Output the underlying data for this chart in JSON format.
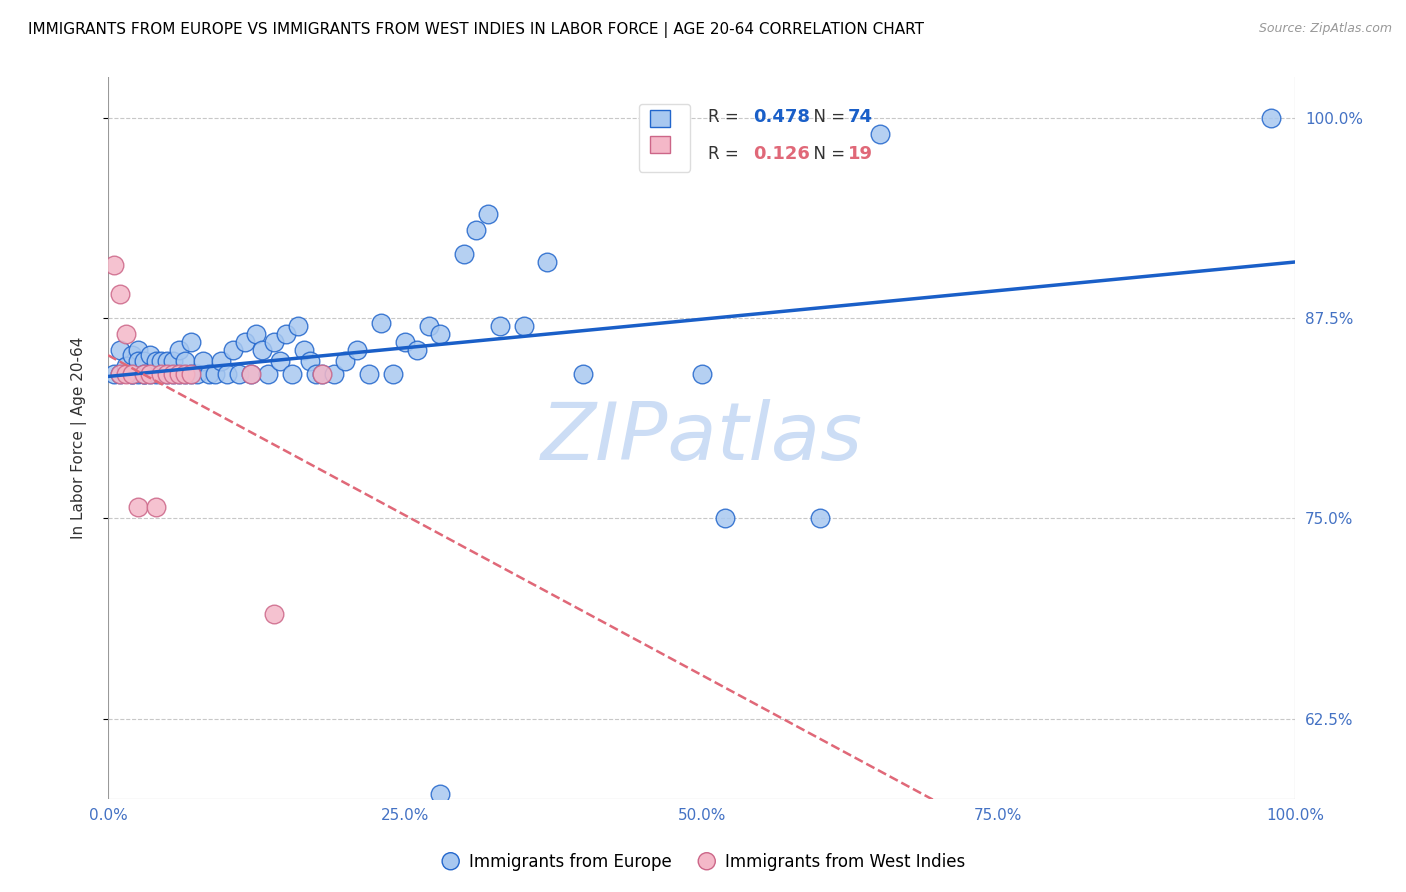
{
  "title": "IMMIGRANTS FROM EUROPE VS IMMIGRANTS FROM WEST INDIES IN LABOR FORCE | AGE 20-64 CORRELATION CHART",
  "source": "Source: ZipAtlas.com",
  "ylabel": "In Labor Force | Age 20-64",
  "ytick_values": [
    0.625,
    0.75,
    0.875,
    1.0
  ],
  "ytick_labels": [
    "62.5%",
    "75.0%",
    "87.5%",
    "100.0%"
  ],
  "xtick_values": [
    0.0,
    0.25,
    0.5,
    0.75,
    1.0
  ],
  "xtick_labels": [
    "0.0%",
    "25.0%",
    "50.0%",
    "75.0%",
    "100.0%"
  ],
  "xlim": [
    0.0,
    1.0
  ],
  "ylim": [
    0.575,
    1.025
  ],
  "color_blue_face": "#a8c8f0",
  "color_blue_edge": "#2266cc",
  "color_pink_face": "#f4b8c8",
  "color_pink_edge": "#cc6688",
  "trendline_blue_color": "#1a5fc8",
  "trendline_pink_color": "#e06878",
  "watermark_color": "#ccddf5",
  "legend_r1_val": "0.478",
  "legend_n1_val": "74",
  "legend_r2_val": "0.126",
  "legend_n2_val": "19",
  "blue_x": [
    0.005,
    0.01,
    0.01,
    0.015,
    0.02,
    0.02,
    0.02,
    0.025,
    0.025,
    0.025,
    0.03,
    0.03,
    0.03,
    0.035,
    0.035,
    0.04,
    0.04,
    0.045,
    0.045,
    0.05,
    0.05,
    0.055,
    0.055,
    0.06,
    0.06,
    0.065,
    0.065,
    0.07,
    0.07,
    0.075,
    0.08,
    0.085,
    0.09,
    0.095,
    0.1,
    0.105,
    0.11,
    0.115,
    0.12,
    0.125,
    0.13,
    0.135,
    0.14,
    0.145,
    0.15,
    0.155,
    0.16,
    0.165,
    0.17,
    0.175,
    0.18,
    0.19,
    0.2,
    0.21,
    0.22,
    0.23,
    0.24,
    0.25,
    0.26,
    0.27,
    0.28,
    0.28,
    0.3,
    0.31,
    0.32,
    0.33,
    0.35,
    0.37,
    0.4,
    0.5,
    0.52,
    0.6,
    0.65,
    0.98
  ],
  "blue_y": [
    0.84,
    0.84,
    0.855,
    0.845,
    0.84,
    0.852,
    0.84,
    0.84,
    0.855,
    0.848,
    0.84,
    0.848,
    0.84,
    0.852,
    0.84,
    0.84,
    0.848,
    0.84,
    0.848,
    0.84,
    0.848,
    0.84,
    0.848,
    0.84,
    0.855,
    0.84,
    0.848,
    0.84,
    0.86,
    0.84,
    0.848,
    0.84,
    0.84,
    0.848,
    0.84,
    0.855,
    0.84,
    0.86,
    0.84,
    0.865,
    0.855,
    0.84,
    0.86,
    0.848,
    0.865,
    0.84,
    0.87,
    0.855,
    0.848,
    0.84,
    0.84,
    0.84,
    0.848,
    0.855,
    0.84,
    0.872,
    0.84,
    0.86,
    0.855,
    0.87,
    0.865,
    0.578,
    0.915,
    0.93,
    0.94,
    0.87,
    0.87,
    0.91,
    0.84,
    0.84,
    0.75,
    0.75,
    0.99,
    1.0
  ],
  "pink_x": [
    0.005,
    0.01,
    0.01,
    0.015,
    0.015,
    0.02,
    0.025,
    0.03,
    0.035,
    0.04,
    0.045,
    0.05,
    0.055,
    0.06,
    0.065,
    0.07,
    0.12,
    0.14,
    0.18
  ],
  "pink_y": [
    0.908,
    0.89,
    0.84,
    0.865,
    0.84,
    0.84,
    0.757,
    0.84,
    0.84,
    0.757,
    0.84,
    0.84,
    0.84,
    0.84,
    0.84,
    0.84,
    0.84,
    0.69,
    0.84
  ],
  "trendline_blue_x0": 0.0,
  "trendline_blue_x1": 1.0,
  "trendline_pink_x0": 0.0,
  "trendline_pink_x1": 1.0
}
